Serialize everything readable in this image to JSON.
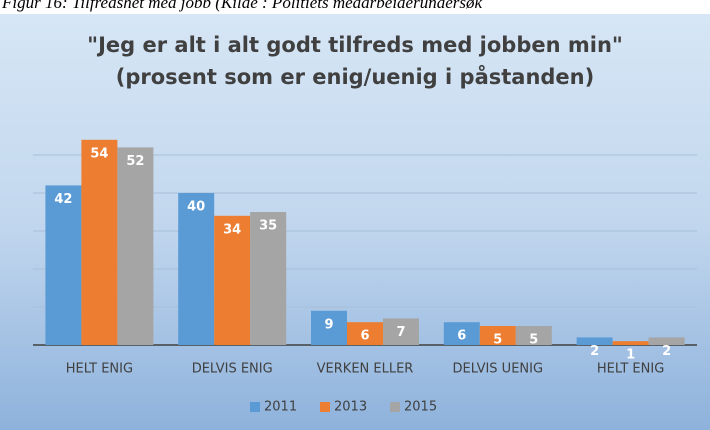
{
  "caption": "Figur 16: Tilfredshet med jobb (Kilde : Politiets medarbeiderundersøk",
  "chart_data": {
    "type": "bar",
    "title": "\"Jeg er alt i alt godt tilfreds med jobben min\"",
    "subtitle": "(prosent som er enig/uenig i påstanden)",
    "categories": [
      "HELT ENIG",
      "DELVIS ENIG",
      "VERKEN ELLER",
      "DELVIS UENIG",
      "HELT ENIG"
    ],
    "series": [
      {
        "name": "2011",
        "color": "#5b9bd5",
        "values": [
          42,
          40,
          9,
          6,
          2
        ]
      },
      {
        "name": "2013",
        "color": "#ed7d31",
        "values": [
          54,
          34,
          6,
          5,
          1
        ]
      },
      {
        "name": "2015",
        "color": "#a5a5a5",
        "values": [
          52,
          35,
          7,
          5,
          2
        ]
      }
    ],
    "ylim": [
      0,
      60
    ],
    "yticks": [
      0,
      10,
      20,
      30,
      40,
      50
    ],
    "grid": true,
    "legend": "bottom"
  }
}
